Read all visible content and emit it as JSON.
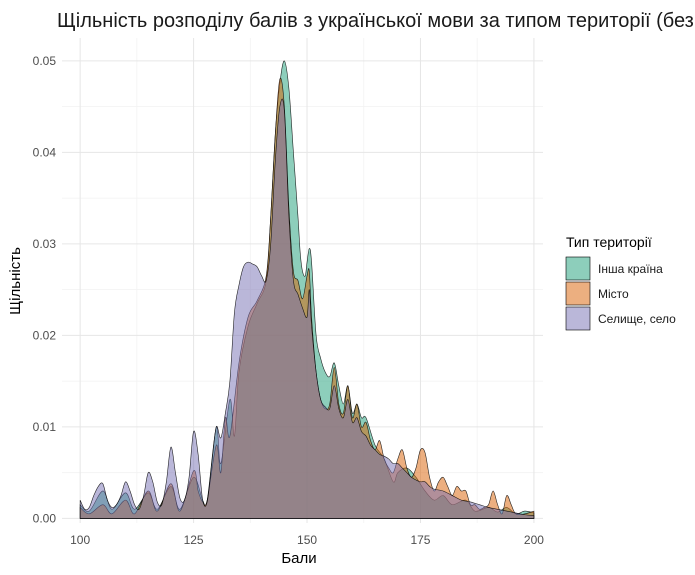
{
  "chart_data": {
    "type": "area",
    "title": "Щільність розподілу балів з української мови за типом території (без нул",
    "xlabel": "Бали",
    "ylabel": "Щільність",
    "xlim": [
      96,
      202
    ],
    "ylim": [
      -0.0005,
      0.0525
    ],
    "xticks": [
      100,
      125,
      150,
      175,
      200
    ],
    "xtick_labels": [
      "100",
      "125",
      "150",
      "175",
      "200"
    ],
    "yticks": [
      0,
      0.01,
      0.02,
      0.03,
      0.04,
      0.05
    ],
    "ytick_labels": [
      "0.00",
      "0.01",
      "0.02",
      "0.03",
      "0.04",
      "0.05"
    ],
    "grid": true,
    "legend": {
      "title": "Тип території",
      "position": "right"
    },
    "series": [
      {
        "name": "Інша країна",
        "color": "#1b9e77",
        "points": [
          [
            100,
            0.0015
          ],
          [
            102,
            0.0008
          ],
          [
            105,
            0.003
          ],
          [
            107,
            0.001
          ],
          [
            110,
            0.0028
          ],
          [
            112,
            0.001
          ],
          [
            115,
            0.0028
          ],
          [
            117,
            0.001
          ],
          [
            120,
            0.0035
          ],
          [
            122,
            0.001
          ],
          [
            125,
            0.0045
          ],
          [
            127,
            0.002
          ],
          [
            128,
            0.002
          ],
          [
            130,
            0.01
          ],
          [
            131,
            0.006
          ],
          [
            133,
            0.013
          ],
          [
            134,
            0.009
          ],
          [
            135,
            0.016
          ],
          [
            137,
            0.021
          ],
          [
            139,
            0.0235
          ],
          [
            141,
            0.026
          ],
          [
            142,
            0.033
          ],
          [
            143,
            0.042
          ],
          [
            144,
            0.0475
          ],
          [
            145,
            0.05
          ],
          [
            146,
            0.047
          ],
          [
            147,
            0.04
          ],
          [
            148,
            0.033
          ],
          [
            148.5,
            0.029
          ],
          [
            149,
            0.027
          ],
          [
            149.6,
            0.0265
          ],
          [
            150,
            0.028
          ],
          [
            150.5,
            0.0295
          ],
          [
            151,
            0.028
          ],
          [
            152,
            0.02
          ],
          [
            153,
            0.0175
          ],
          [
            154,
            0.016
          ],
          [
            155,
            0.0155
          ],
          [
            156,
            0.017
          ],
          [
            157,
            0.0145
          ],
          [
            158,
            0.0125
          ],
          [
            159,
            0.0145
          ],
          [
            160,
            0.0115
          ],
          [
            161,
            0.0125
          ],
          [
            162,
            0.011
          ],
          [
            163,
            0.011
          ],
          [
            165,
            0.008
          ],
          [
            167,
            0.0065
          ],
          [
            169,
            0.004
          ],
          [
            170,
            0.005
          ],
          [
            172,
            0.0055
          ],
          [
            174,
            0.0045
          ],
          [
            176,
            0.003
          ],
          [
            178,
            0.002
          ],
          [
            180,
            0.0025
          ],
          [
            182,
            0.0015
          ],
          [
            185,
            0.002
          ],
          [
            187,
            0.0008
          ],
          [
            190,
            0.0012
          ],
          [
            192,
            0.0007
          ],
          [
            194,
            0.0012
          ],
          [
            196,
            0.0005
          ],
          [
            198,
            0.0008
          ],
          [
            200,
            0.0006
          ]
        ]
      },
      {
        "name": "Місто",
        "color": "#d95f02",
        "points": [
          [
            100,
            0.0012
          ],
          [
            102,
            0.0005
          ],
          [
            105,
            0.0015
          ],
          [
            107,
            0.0005
          ],
          [
            110,
            0.002
          ],
          [
            112,
            0.0005
          ],
          [
            115,
            0.003
          ],
          [
            117,
            0.0008
          ],
          [
            120,
            0.0038
          ],
          [
            122,
            0.0008
          ],
          [
            125,
            0.0052
          ],
          [
            126,
            0.003
          ],
          [
            127,
            0.0018
          ],
          [
            128,
            0.002
          ],
          [
            130,
            0.008
          ],
          [
            131,
            0.005
          ],
          [
            132,
            0.011
          ],
          [
            133,
            0.009
          ],
          [
            135,
            0.017
          ],
          [
            137,
            0.022
          ],
          [
            139,
            0.0238
          ],
          [
            141,
            0.0265
          ],
          [
            142,
            0.033
          ],
          [
            143,
            0.042
          ],
          [
            144,
            0.048
          ],
          [
            145,
            0.045
          ],
          [
            146,
            0.034
          ],
          [
            147,
            0.027
          ],
          [
            148,
            0.026
          ],
          [
            149,
            0.024
          ],
          [
            150,
            0.0265
          ],
          [
            150.5,
            0.027
          ],
          [
            151,
            0.022
          ],
          [
            152,
            0.016
          ],
          [
            153,
            0.013
          ],
          [
            154,
            0.012
          ],
          [
            155,
            0.0125
          ],
          [
            156,
            0.0165
          ],
          [
            157,
            0.0125
          ],
          [
            158,
            0.0115
          ],
          [
            159,
            0.0145
          ],
          [
            160,
            0.011
          ],
          [
            161,
            0.0125
          ],
          [
            162,
            0.01
          ],
          [
            163,
            0.0105
          ],
          [
            164,
            0.0085
          ],
          [
            165,
            0.0075
          ],
          [
            166,
            0.0085
          ],
          [
            167,
            0.0065
          ],
          [
            168,
            0.0055
          ],
          [
            169,
            0.005
          ],
          [
            170,
            0.0065
          ],
          [
            171,
            0.0075
          ],
          [
            172,
            0.0055
          ],
          [
            173,
            0.0045
          ],
          [
            174,
            0.0055
          ],
          [
            175,
            0.0075
          ],
          [
            176,
            0.0072
          ],
          [
            177,
            0.0045
          ],
          [
            178,
            0.003
          ],
          [
            179,
            0.004
          ],
          [
            180,
            0.0045
          ],
          [
            181,
            0.0035
          ],
          [
            182,
            0.0025
          ],
          [
            183,
            0.0035
          ],
          [
            184,
            0.003
          ],
          [
            185,
            0.003
          ],
          [
            186,
            0.0015
          ],
          [
            187,
            0.0015
          ],
          [
            188,
            0.001
          ],
          [
            189,
            0.0012
          ],
          [
            190,
            0.0015
          ],
          [
            191,
            0.003
          ],
          [
            192,
            0.0015
          ],
          [
            193,
            0.0005
          ],
          [
            194,
            0.0025
          ],
          [
            195,
            0.0015
          ],
          [
            196,
            0.0005
          ],
          [
            198,
            0.0005
          ],
          [
            200,
            0.0008
          ]
        ]
      },
      {
        "name": "Селище, село",
        "color": "#7570b3",
        "points": [
          [
            100,
            0.002
          ],
          [
            101,
            0.001
          ],
          [
            102,
            0.0012
          ],
          [
            103,
            0.0025
          ],
          [
            104,
            0.0035
          ],
          [
            105,
            0.0038
          ],
          [
            106,
            0.002
          ],
          [
            107,
            0.0012
          ],
          [
            108,
            0.0015
          ],
          [
            109,
            0.0025
          ],
          [
            110,
            0.004
          ],
          [
            111,
            0.003
          ],
          [
            112,
            0.0015
          ],
          [
            113,
            0.001
          ],
          [
            114,
            0.0025
          ],
          [
            115,
            0.005
          ],
          [
            116,
            0.004
          ],
          [
            117,
            0.0018
          ],
          [
            118,
            0.0015
          ],
          [
            119,
            0.004
          ],
          [
            120,
            0.0078
          ],
          [
            121,
            0.005
          ],
          [
            122,
            0.0022
          ],
          [
            123,
            0.002
          ],
          [
            124,
            0.0045
          ],
          [
            125,
            0.0095
          ],
          [
            126,
            0.007
          ],
          [
            127,
            0.002
          ],
          [
            128,
            0.0018
          ],
          [
            129,
            0.006
          ],
          [
            130,
            0.01
          ],
          [
            131,
            0.0088
          ],
          [
            132,
            0.0115
          ],
          [
            133,
            0.015
          ],
          [
            134,
            0.0225
          ],
          [
            135,
            0.0255
          ],
          [
            136,
            0.0275
          ],
          [
            137,
            0.028
          ],
          [
            138,
            0.0278
          ],
          [
            139,
            0.0275
          ],
          [
            140,
            0.0265
          ],
          [
            141,
            0.026
          ],
          [
            142,
            0.03
          ],
          [
            143,
            0.039
          ],
          [
            144,
            0.045
          ],
          [
            145,
            0.0445
          ],
          [
            146,
            0.033
          ],
          [
            147,
            0.026
          ],
          [
            148,
            0.0245
          ],
          [
            149,
            0.023
          ],
          [
            150,
            0.022
          ],
          [
            150.5,
            0.025
          ],
          [
            151,
            0.021
          ],
          [
            152,
            0.016
          ],
          [
            153,
            0.013
          ],
          [
            154,
            0.0122
          ],
          [
            155,
            0.012
          ],
          [
            156,
            0.0145
          ],
          [
            157,
            0.012
          ],
          [
            158,
            0.011
          ],
          [
            159,
            0.013
          ],
          [
            160,
            0.0105
          ],
          [
            161,
            0.011
          ],
          [
            162,
            0.0095
          ],
          [
            163,
            0.009
          ],
          [
            164,
            0.008
          ],
          [
            165,
            0.0075
          ],
          [
            166,
            0.007
          ],
          [
            167,
            0.0068
          ],
          [
            168,
            0.0065
          ],
          [
            169,
            0.006
          ],
          [
            170,
            0.006
          ],
          [
            171,
            0.0055
          ],
          [
            172,
            0.005
          ],
          [
            173,
            0.0045
          ],
          [
            174,
            0.0042
          ],
          [
            175,
            0.004
          ],
          [
            176,
            0.004
          ],
          [
            177,
            0.0035
          ],
          [
            178,
            0.0032
          ],
          [
            180,
            0.003
          ],
          [
            182,
            0.0025
          ],
          [
            184,
            0.002
          ],
          [
            186,
            0.0018
          ],
          [
            188,
            0.0015
          ],
          [
            190,
            0.0012
          ],
          [
            192,
            0.001
          ],
          [
            194,
            0.0008
          ],
          [
            196,
            0.0006
          ],
          [
            198,
            0.0004
          ],
          [
            200,
            0.0003
          ]
        ]
      }
    ]
  }
}
